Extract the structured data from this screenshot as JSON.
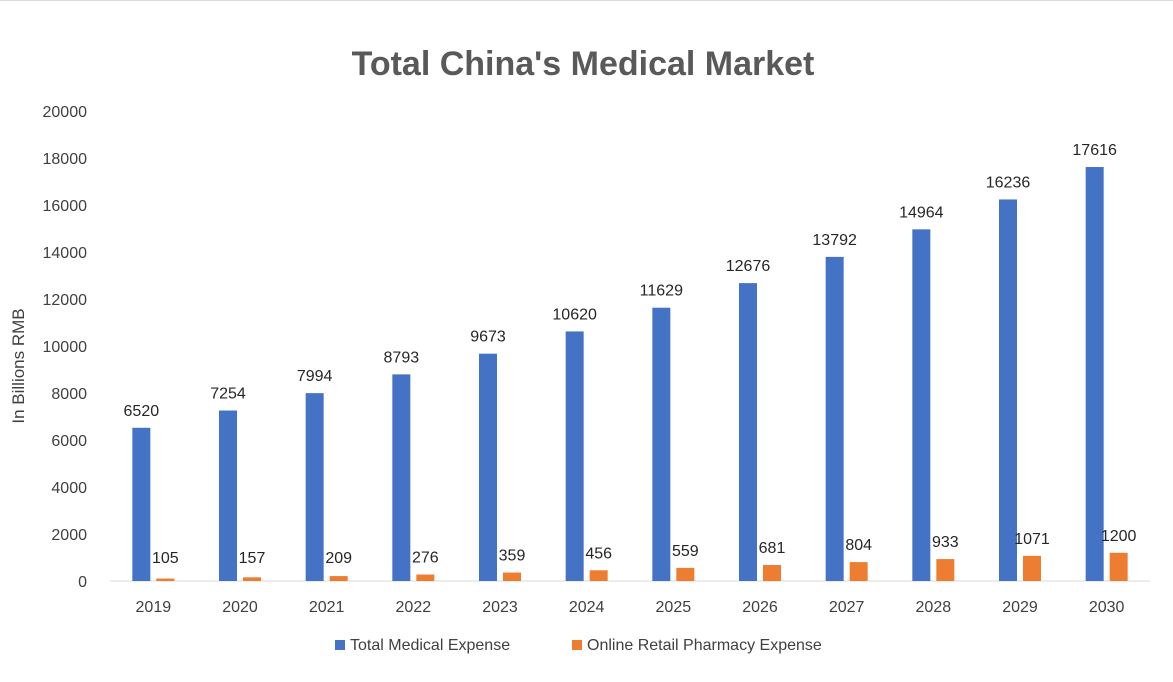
{
  "chart_data": {
    "type": "bar",
    "title": "Total China's Medical Market",
    "xlabel": "",
    "ylabel": "In Billions RMB",
    "ylim": [
      0,
      20000
    ],
    "yticks": [
      0,
      2000,
      4000,
      6000,
      8000,
      10000,
      12000,
      14000,
      16000,
      18000,
      20000
    ],
    "categories": [
      "2019",
      "2020",
      "2021",
      "2022",
      "2023",
      "2024",
      "2025",
      "2026",
      "2027",
      "2028",
      "2029",
      "2030"
    ],
    "series": [
      {
        "name": "Total Medical Expense",
        "color": "#4472C4",
        "values": [
          6520,
          7254,
          7994,
          8793,
          9673,
          10620,
          11629,
          12676,
          13792,
          14964,
          16236,
          17616
        ]
      },
      {
        "name": "Online Retail Pharmacy Expense",
        "color": "#ED7D31",
        "values": [
          105,
          157,
          209,
          276,
          359,
          456,
          559,
          681,
          804,
          933,
          1071,
          1200
        ]
      }
    ],
    "grid": false,
    "legend_position": "bottom",
    "data_labels": true
  }
}
